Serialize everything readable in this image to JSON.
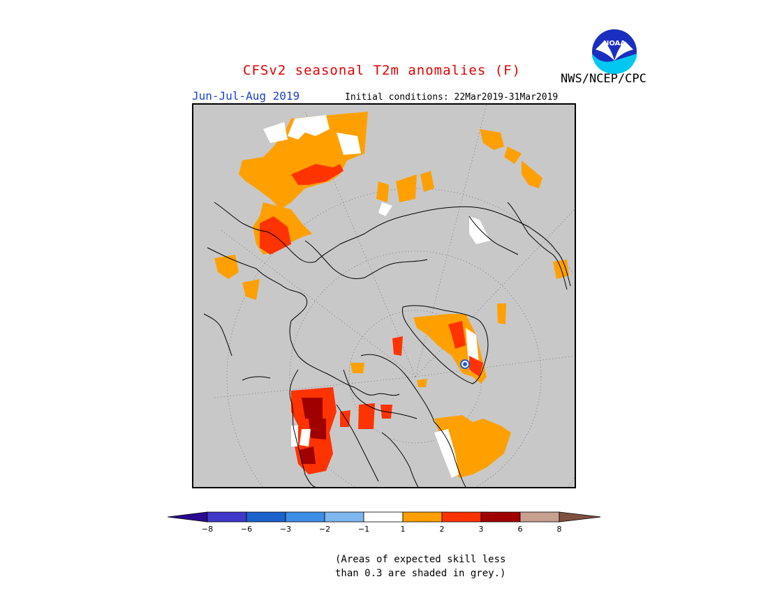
{
  "header": {
    "title": "CFSv2 seasonal T2m anomalies (F)",
    "season": "Jun-Jul-Aug 2019",
    "initial_conditions": "Initial conditions: 22Mar2019-31Mar2019",
    "agency": "NWS/NCEP/CPC",
    "logo_text": "NOAA"
  },
  "colors": {
    "land_grey": "#c8c8c8",
    "white": "#ffffff",
    "c1_2": "#ffa000",
    "c2_3": "#ff3300",
    "c3_6": "#a00000",
    "c6_8": "#c8a090",
    "gt8": "#805040",
    "neg": [
      "#2a0a90",
      "#4030c0",
      "#1a60d0",
      "#3a90e8",
      "#80b8f0"
    ]
  },
  "colorbar": {
    "ticks": [
      "−8",
      "−6",
      "−3",
      "−2",
      "−1",
      "1",
      "2",
      "3",
      "6",
      "8"
    ],
    "segments": [
      "#2a0a90",
      "#4038c8",
      "#1c62cc",
      "#3c8ee6",
      "#7eb6ee",
      "#ffffff",
      "#ffa000",
      "#ff3300",
      "#a00000",
      "#c8a090",
      "#805040"
    ]
  },
  "footnote": {
    "line1": "(Areas of expected skill less",
    "line2": "than 0.3 are shaded in grey.)"
  }
}
